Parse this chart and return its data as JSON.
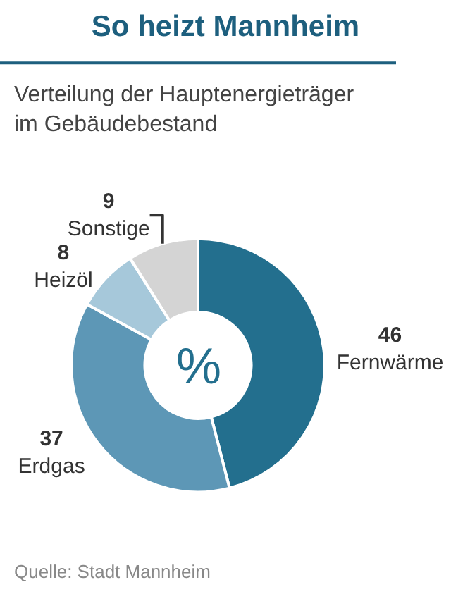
{
  "chart_data": {
    "type": "donut",
    "title": "So heizt Mannheim",
    "subtitle": "Verteilung der Hauptenergieträger im Gebäudebestand",
    "categories": [
      "Fernwärme",
      "Erdgas",
      "Heizöl",
      "Sonstige"
    ],
    "values": [
      46,
      37,
      8,
      9
    ],
    "colors": [
      "#236f8e",
      "#5d97b6",
      "#a6c8da",
      "#d4d4d4"
    ],
    "data_labels": true,
    "legend": false,
    "annotations": [
      "%",
      "Quelle: Stadt Mannheim"
    ]
  }
}
